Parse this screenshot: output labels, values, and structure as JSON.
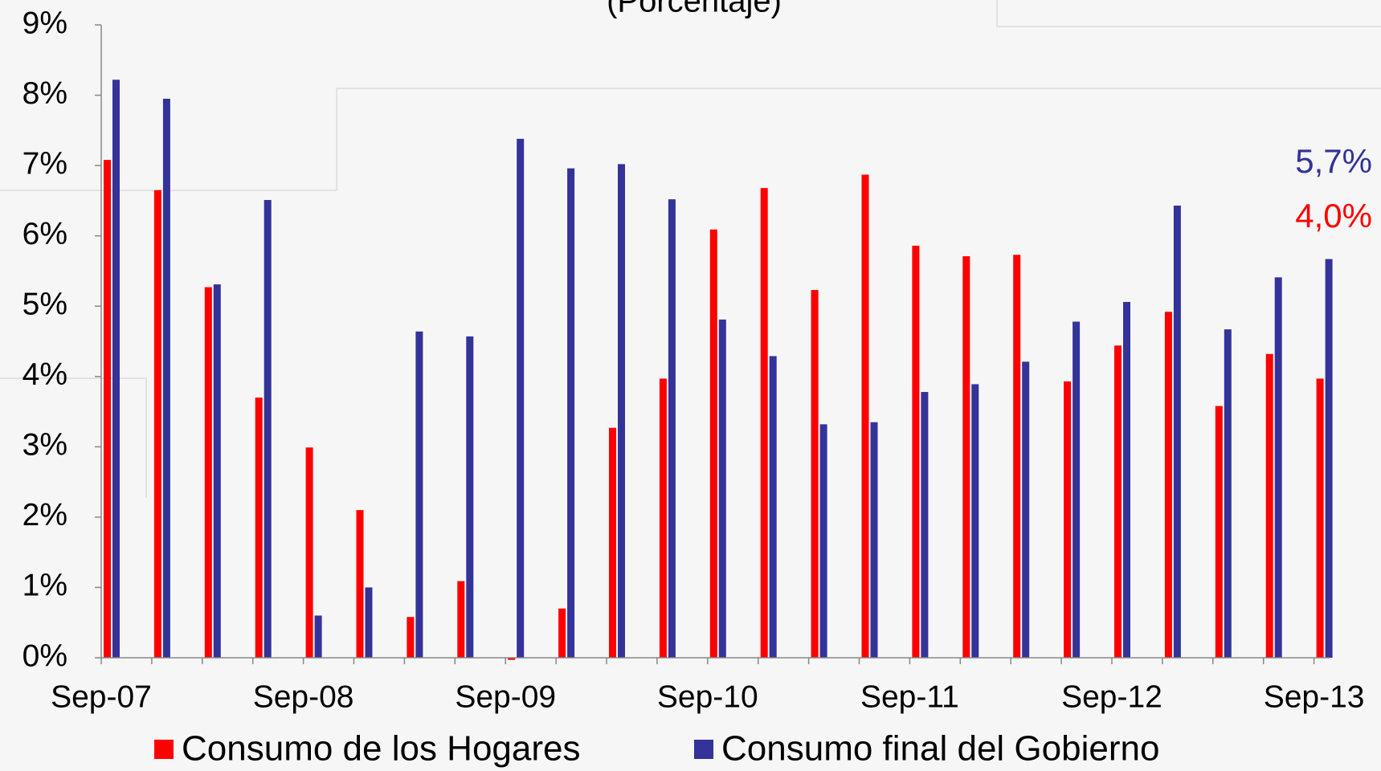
{
  "chart_data": {
    "type": "bar",
    "subtitle": "(Porcentaje)",
    "categories": [
      "Sep-07",
      null,
      null,
      null,
      "Sep-08",
      null,
      null,
      null,
      "Sep-09",
      null,
      null,
      null,
      "Sep-10",
      null,
      null,
      null,
      "Sep-11",
      null,
      null,
      null,
      "Sep-12",
      null,
      null,
      null,
      "Sep-13"
    ],
    "series": [
      {
        "name": "Consumo de los Hogares",
        "color": "#ff0000",
        "values": [
          7.08,
          6.65,
          5.27,
          3.7,
          2.99,
          2.1,
          0.58,
          1.09,
          -0.03,
          0.7,
          3.27,
          3.97,
          6.09,
          6.68,
          5.23,
          6.87,
          5.86,
          5.71,
          5.73,
          3.93,
          4.44,
          4.92,
          3.58,
          4.32,
          3.97
        ]
      },
      {
        "name": "Consumo final del Gobierno",
        "color": "#333399",
        "values": [
          8.22,
          7.95,
          5.31,
          6.51,
          0.6,
          1.0,
          4.64,
          4.57,
          7.38,
          6.96,
          7.02,
          6.52,
          4.81,
          4.29,
          3.32,
          3.35,
          3.78,
          3.89,
          4.21,
          4.78,
          5.06,
          6.43,
          4.67,
          5.41,
          5.67
        ]
      }
    ],
    "ylim": [
      0,
      9
    ],
    "yticks": [
      {
        "value": 0,
        "label": "0%"
      },
      {
        "value": 1,
        "label": "1%"
      },
      {
        "value": 2,
        "label": "2%"
      },
      {
        "value": 3,
        "label": "3%"
      },
      {
        "value": 4,
        "label": "4%"
      },
      {
        "value": 5,
        "label": "5%"
      },
      {
        "value": 6,
        "label": "6%"
      },
      {
        "value": 7,
        "label": "7%"
      },
      {
        "value": 8,
        "label": "8%"
      },
      {
        "value": 9,
        "label": "9%"
      }
    ],
    "annotations": [
      {
        "text": "5,7%",
        "color": "#333399"
      },
      {
        "text": "4,0%",
        "color": "#ff0000"
      }
    ],
    "legend": "bottom"
  }
}
